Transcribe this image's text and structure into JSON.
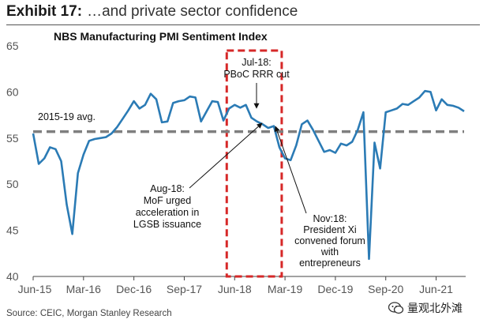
{
  "header": {
    "exhibit_label": "Exhibit 17:",
    "exhibit_title": "…and private sector confidence"
  },
  "footer": {
    "source": "Source: CEIC, Morgan Stanley Research"
  },
  "watermark": {
    "text": "量观北外滩"
  },
  "chart_data": {
    "type": "line",
    "title": "NBS Manufacturing PMI Sentiment Index",
    "xlabel": "",
    "ylabel": "",
    "ylim": [
      40,
      65
    ],
    "y_ticks": [
      40,
      45,
      50,
      55,
      60,
      65
    ],
    "x_ticks": [
      "Jun-15",
      "Mar-16",
      "Dec-16",
      "Sep-17",
      "Jun-18",
      "Mar-19",
      "Dec-19",
      "Sep-20",
      "Jun-21"
    ],
    "x_start": "Jun-15",
    "series": [
      {
        "name": "NBS Manufacturing PMI Sentiment Index",
        "color": "#2b7bb5",
        "values": [
          55.5,
          52.2,
          52.8,
          54.0,
          53.8,
          52.5,
          47.8,
          44.6,
          51.2,
          53.2,
          54.7,
          54.9,
          55.0,
          55.1,
          55.5,
          56.2,
          57.1,
          58.0,
          59.0,
          58.2,
          58.6,
          59.8,
          59.2,
          56.7,
          56.8,
          58.8,
          59.0,
          59.1,
          59.5,
          59.4,
          56.8,
          57.9,
          59.0,
          58.9,
          56.9,
          58.2,
          58.6,
          58.3,
          58.6,
          57.2,
          56.8,
          56.5,
          56.1,
          56.3,
          54.0,
          52.8,
          52.6,
          54.2,
          56.5,
          56.9,
          55.9,
          54.7,
          53.5,
          53.7,
          53.4,
          54.4,
          54.2,
          54.6,
          55.9,
          57.8,
          41.9,
          54.5,
          51.7,
          57.8,
          58.0,
          58.2,
          58.7,
          58.6,
          59.0,
          59.4,
          60.1,
          60.0,
          58.0,
          59.2,
          58.6,
          58.5,
          58.3,
          57.9
        ]
      },
      {
        "name": "2015-19 avg.",
        "color": "#7f7f7f",
        "values": [
          55.7
        ]
      }
    ],
    "highlight": {
      "from": "Jun-18",
      "to": "Jan-19",
      "color": "#d62828"
    },
    "annotations": {
      "avg_label": "2015-19 avg.",
      "jul18": [
        "Jul-18:",
        "PBoC RRR cut"
      ],
      "aug18": [
        "Aug-18:",
        "MoF urged",
        "acceleration in",
        "LGSB issuance"
      ],
      "nov18": [
        "Nov:18:",
        "President Xi",
        "convened forum",
        "with",
        "entrepreneurs"
      ]
    }
  }
}
